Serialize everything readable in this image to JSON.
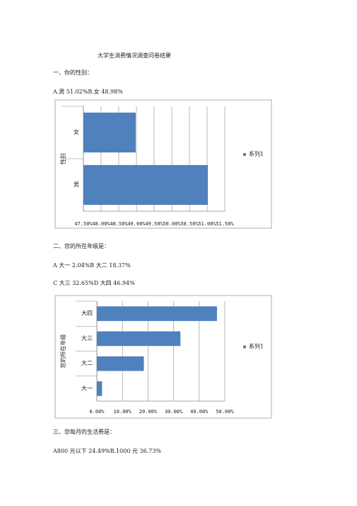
{
  "title": "大学生消费情况调查问卷结果",
  "sections": [
    {
      "heading": "一、你的性别：",
      "lines": [
        "A.男 51.02%B.女 48.98%"
      ]
    },
    {
      "heading": "二、您的所在年级是：",
      "lines": [
        "A 大一 2.04%B 大二 18.37%",
        "C 大三 32.65%D 大四 46.94%"
      ]
    },
    {
      "heading": "三、您每月的生活费是：",
      "lines": [
        "A800 元以下 24.49%B.1000 元 36.73%"
      ]
    }
  ],
  "chart_data": [
    {
      "type": "hbar",
      "y_label": "性别",
      "categories": [
        "女",
        "男"
      ],
      "series": [
        {
          "name": "系列1",
          "color": "#4f81bd",
          "values": [
            48.98,
            51.02
          ]
        }
      ],
      "xlim": [
        47.5,
        51.5
      ],
      "xticks": [
        {
          "value": 47.5,
          "label": "47.50%"
        },
        {
          "value": 48,
          "label": "48.00%"
        },
        {
          "value": 48.5,
          "label": "48.50%"
        },
        {
          "value": 49,
          "label": "49.00%"
        },
        {
          "value": 49.5,
          "label": "49.50%"
        },
        {
          "value": 50,
          "label": "50.00%"
        },
        {
          "value": 50.5,
          "label": "50.50%"
        },
        {
          "value": 51,
          "label": "51.00%"
        },
        {
          "value": 51.5,
          "label": "51.50%"
        }
      ],
      "grid": true,
      "legend": "right"
    },
    {
      "type": "hbar",
      "y_label": "您的所在年级",
      "categories": [
        "大四",
        "大三",
        "大二",
        "大一"
      ],
      "series": [
        {
          "name": "系列1",
          "color": "#4f81bd",
          "values": [
            46.94,
            32.65,
            18.37,
            2.04
          ]
        }
      ],
      "xlim": [
        0,
        50
      ],
      "xticks": [
        {
          "value": 0,
          "label": "0.00%"
        },
        {
          "value": 10,
          "label": "10.00%"
        },
        {
          "value": 20,
          "label": "20.00%"
        },
        {
          "value": 30,
          "label": "30.00%"
        },
        {
          "value": 40,
          "label": "40.00%"
        },
        {
          "value": 50,
          "label": "50.00%"
        }
      ],
      "grid": true,
      "legend": "right"
    }
  ]
}
